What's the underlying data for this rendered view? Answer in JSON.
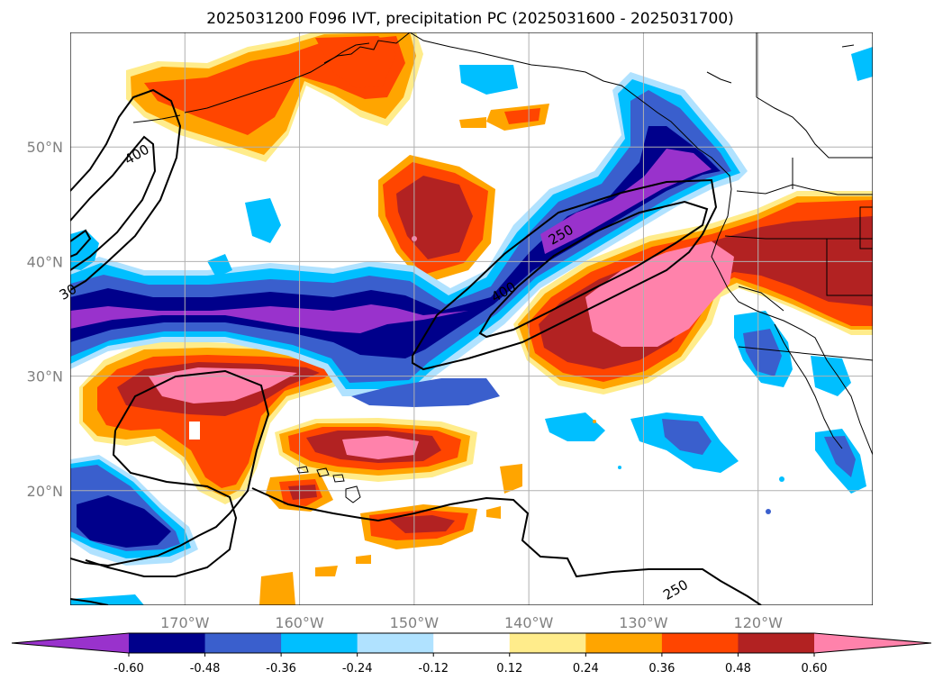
{
  "chart_data": {
    "type": "heatmap",
    "title": "2025031200 F096 IVT, precipitation PC (2025031600 - 2025031700)",
    "xlabel": "",
    "ylabel": "",
    "x_ticks": [
      "170°W",
      "160°W",
      "150°W",
      "140°W",
      "130°W",
      "120°W"
    ],
    "y_ticks": [
      "50°N",
      "40°N",
      "30°N",
      "20°N"
    ],
    "lon_range": [
      -180,
      -110
    ],
    "lat_range": [
      10,
      60
    ],
    "grid": true,
    "colorbar": {
      "orientation": "horizontal",
      "extend": "both",
      "levels": [
        -0.72,
        -0.6,
        -0.48,
        -0.36,
        -0.24,
        -0.12,
        0.12,
        0.24,
        0.36,
        0.48,
        0.6,
        0.72
      ],
      "tick_labels": [
        "-0.60",
        "-0.48",
        "-0.36",
        "-0.24",
        "-0.12",
        "0.12",
        "0.24",
        "0.36",
        "0.48",
        "0.60"
      ],
      "colors": [
        "#9932cc",
        "#00008b",
        "#3a5fcd",
        "#00bfff",
        "#b0e2ff",
        "#ffffff",
        "#ffec8b",
        "#ffa500",
        "#ff4500",
        "#b22222",
        "#ff82ab"
      ]
    },
    "contour_labels": [
      {
        "text": "400",
        "lon": -174,
        "lat": 49
      },
      {
        "text": "30",
        "lon": -180,
        "lat": 37
      },
      {
        "text": "250",
        "lon": -137,
        "lat": 42
      },
      {
        "text": "400",
        "lon": -142,
        "lat": 37
      },
      {
        "text": "250",
        "lon": -127,
        "lat": 11
      }
    ]
  }
}
